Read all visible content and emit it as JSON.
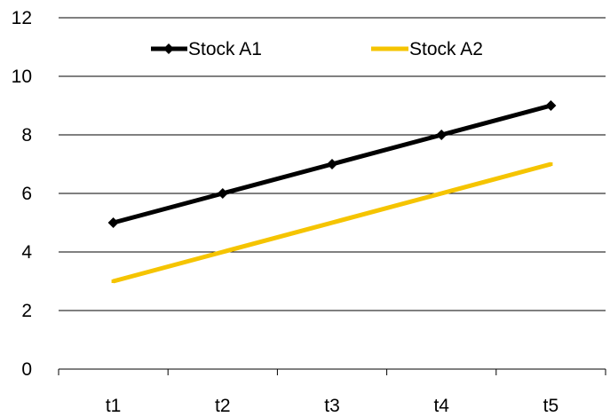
{
  "chart_data": {
    "type": "line",
    "categories": [
      "t1",
      "t2",
      "t3",
      "t4",
      "t5"
    ],
    "series": [
      {
        "name": "Stock A1",
        "values": [
          5,
          6,
          7,
          8,
          9
        ],
        "color": "#000000",
        "marker": "diamond"
      },
      {
        "name": "Stock A2",
        "values": [
          3,
          4,
          5,
          6,
          7
        ],
        "color": "#f5c400",
        "marker": "none"
      }
    ],
    "title": "",
    "xlabel": "",
    "ylabel": "",
    "ylim": [
      0,
      12
    ],
    "yticks": [
      "0",
      "2",
      "4",
      "6",
      "8",
      "10",
      "12"
    ],
    "grid": "horizontal",
    "legend_position": "top"
  }
}
